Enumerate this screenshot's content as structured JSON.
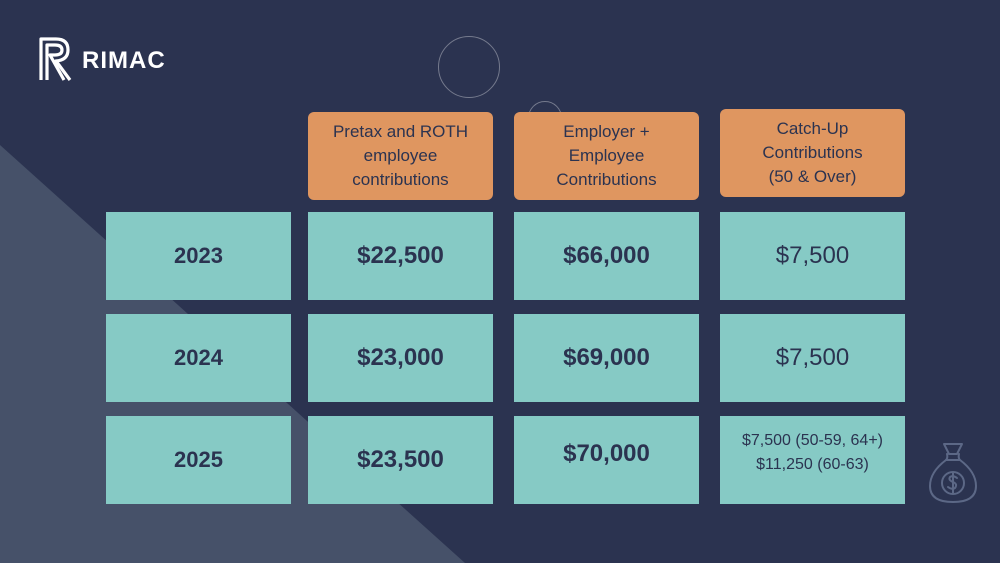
{
  "brand": {
    "name": "RIMAC",
    "logo_icon": "rimac-r-logo-icon"
  },
  "headers": [
    "Pretax and ROTH employee contributions",
    "Employer + Employee Contributions",
    "Catch-Up Contributions (50 & Over)"
  ],
  "header_lines": [
    [
      "Pretax and ROTH",
      "employee",
      "contributions"
    ],
    [
      "Employer +",
      "Employee",
      "Contributions"
    ],
    [
      "Catch-Up",
      "Contributions",
      "(50 & Over)"
    ]
  ],
  "rows": [
    {
      "year": "2023",
      "employee": "$22,500",
      "total": "$66,000",
      "catchup": [
        "$7,500"
      ]
    },
    {
      "year": "2024",
      "employee": "$23,000",
      "total": "$69,000",
      "catchup": [
        "$7,500"
      ]
    },
    {
      "year": "2025",
      "employee": "$23,500",
      "total": "$70,000",
      "catchup": [
        "$7,500 (50-59, 64+)",
        "$11,250 (60-63)"
      ]
    }
  ],
  "icons": {
    "money_bag": "money-bag-icon"
  },
  "colors": {
    "background": "#2b3350",
    "diagonal_band": "#465169",
    "header_fill": "#df9660",
    "cell_fill": "#86cac5",
    "text_dark": "#2b3350"
  }
}
